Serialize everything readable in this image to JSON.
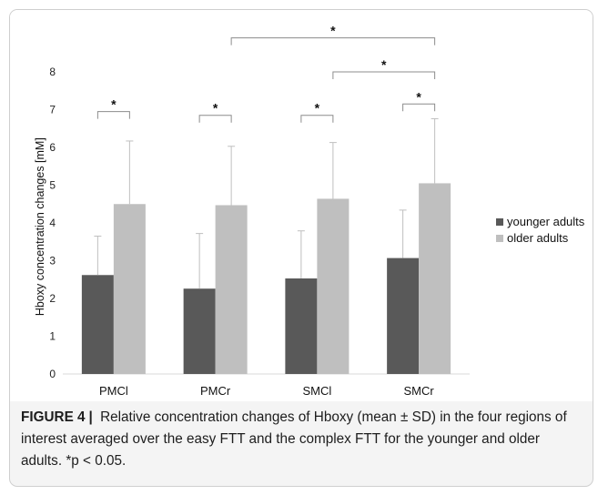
{
  "chart_data": {
    "type": "bar",
    "ylabel": "Hboxy concentration changes [mM]",
    "ylim": [
      0,
      8
    ],
    "yticks": [
      "0",
      "1",
      "2",
      "3",
      "4",
      "5",
      "6",
      "7",
      "8"
    ],
    "categories": [
      "PMCl",
      "PMCr",
      "SMCl",
      "SMCr"
    ],
    "series": [
      {
        "name": "younger adults",
        "color": "#595959",
        "values": [
          2.62,
          2.26,
          2.53,
          3.07
        ],
        "sd": [
          1.03,
          1.46,
          1.26,
          1.27
        ]
      },
      {
        "name": "older adults",
        "color": "#bfbfbf",
        "values": [
          4.5,
          4.47,
          4.64,
          5.05
        ],
        "sd": [
          1.67,
          1.56,
          1.49,
          1.71
        ]
      }
    ],
    "error_bar_color": "#bfbfbf",
    "legend": "right",
    "significance": [
      {
        "label": "*",
        "from": "PMCl.younger adults",
        "to": "PMCl.older adults",
        "level": 6.95
      },
      {
        "label": "*",
        "from": "PMCr.younger adults",
        "to": "PMCr.older adults",
        "level": 6.85
      },
      {
        "label": "*",
        "from": "SMCl.younger adults",
        "to": "SMCl.older adults",
        "level": 6.85
      },
      {
        "label": "*",
        "from": "SMCr.younger adults",
        "to": "SMCr.older adults",
        "level": 7.15
      },
      {
        "label": "*",
        "from": "SMCl.older adults",
        "to": "SMCr.older adults",
        "level": 8.0
      },
      {
        "label": "*",
        "from": "PMCr.older adults",
        "to": "SMCr.older adults",
        "level": 8.9
      }
    ]
  },
  "caption": {
    "label": "FIGURE 4",
    "separator": "|",
    "text": "Relative concentration changes of Hboxy (mean ± SD) in the four regions of interest averaged over the easy FTT and the complex FTT for the younger and older adults. *p < 0.05."
  }
}
